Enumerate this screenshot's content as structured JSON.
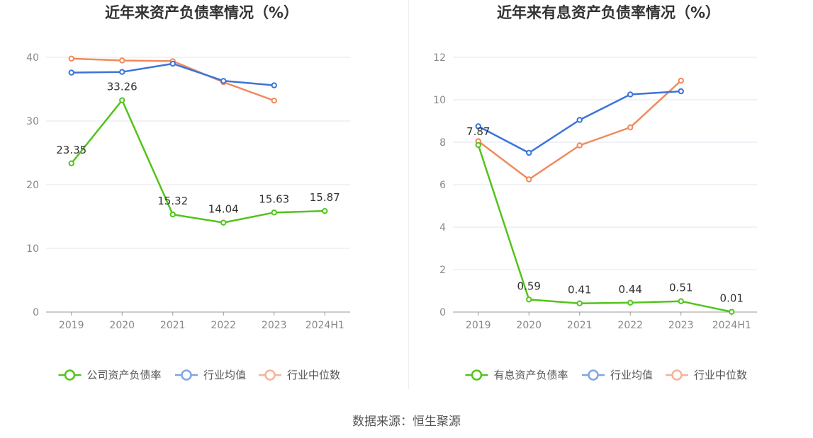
{
  "chart_data": [
    {
      "type": "line",
      "title": "近年来资产负债率情况（%）",
      "categories": [
        "2019",
        "2020",
        "2021",
        "2022",
        "2023",
        "2024H1"
      ],
      "ylim": [
        0,
        40
      ],
      "yticks": [
        0,
        10,
        20,
        30,
        40
      ],
      "grid": true,
      "legend_position": "bottom",
      "series": [
        {
          "name": "公司资产负债率",
          "color": "#52c41a",
          "values": [
            23.35,
            33.26,
            15.32,
            14.04,
            15.63,
            15.87
          ],
          "labels": [
            "23.35",
            "33.26",
            "15.32",
            "14.04",
            "15.63",
            "15.87"
          ]
        },
        {
          "name": "行业均值",
          "color": "#3b74d9",
          "values": [
            37.6,
            37.7,
            39.0,
            36.3,
            35.6,
            null
          ]
        },
        {
          "name": "行业中位数",
          "color": "#f08a5d",
          "values": [
            39.8,
            39.5,
            39.4,
            36.1,
            33.2,
            null
          ]
        }
      ]
    },
    {
      "type": "line",
      "title": "近年来有息资产负债率情况（%）",
      "categories": [
        "2019",
        "2020",
        "2021",
        "2022",
        "2023",
        "2024H1"
      ],
      "ylim": [
        0,
        12
      ],
      "yticks": [
        0,
        2,
        4,
        6,
        8,
        10,
        12
      ],
      "grid": true,
      "legend_position": "bottom",
      "series": [
        {
          "name": "有息资产负债率",
          "color": "#52c41a",
          "values": [
            7.87,
            0.59,
            0.41,
            0.44,
            0.51,
            0.01
          ],
          "labels": [
            "7.87",
            "0.59",
            "0.41",
            "0.44",
            "0.51",
            "0.01"
          ]
        },
        {
          "name": "行业均值",
          "color": "#3b74d9",
          "values": [
            8.75,
            7.5,
            9.05,
            10.25,
            10.4,
            null
          ]
        },
        {
          "name": "行业中位数",
          "color": "#f08a5d",
          "values": [
            8.05,
            6.25,
            7.85,
            8.7,
            10.9,
            null
          ]
        }
      ]
    }
  ],
  "source": "数据来源：恒生聚源"
}
